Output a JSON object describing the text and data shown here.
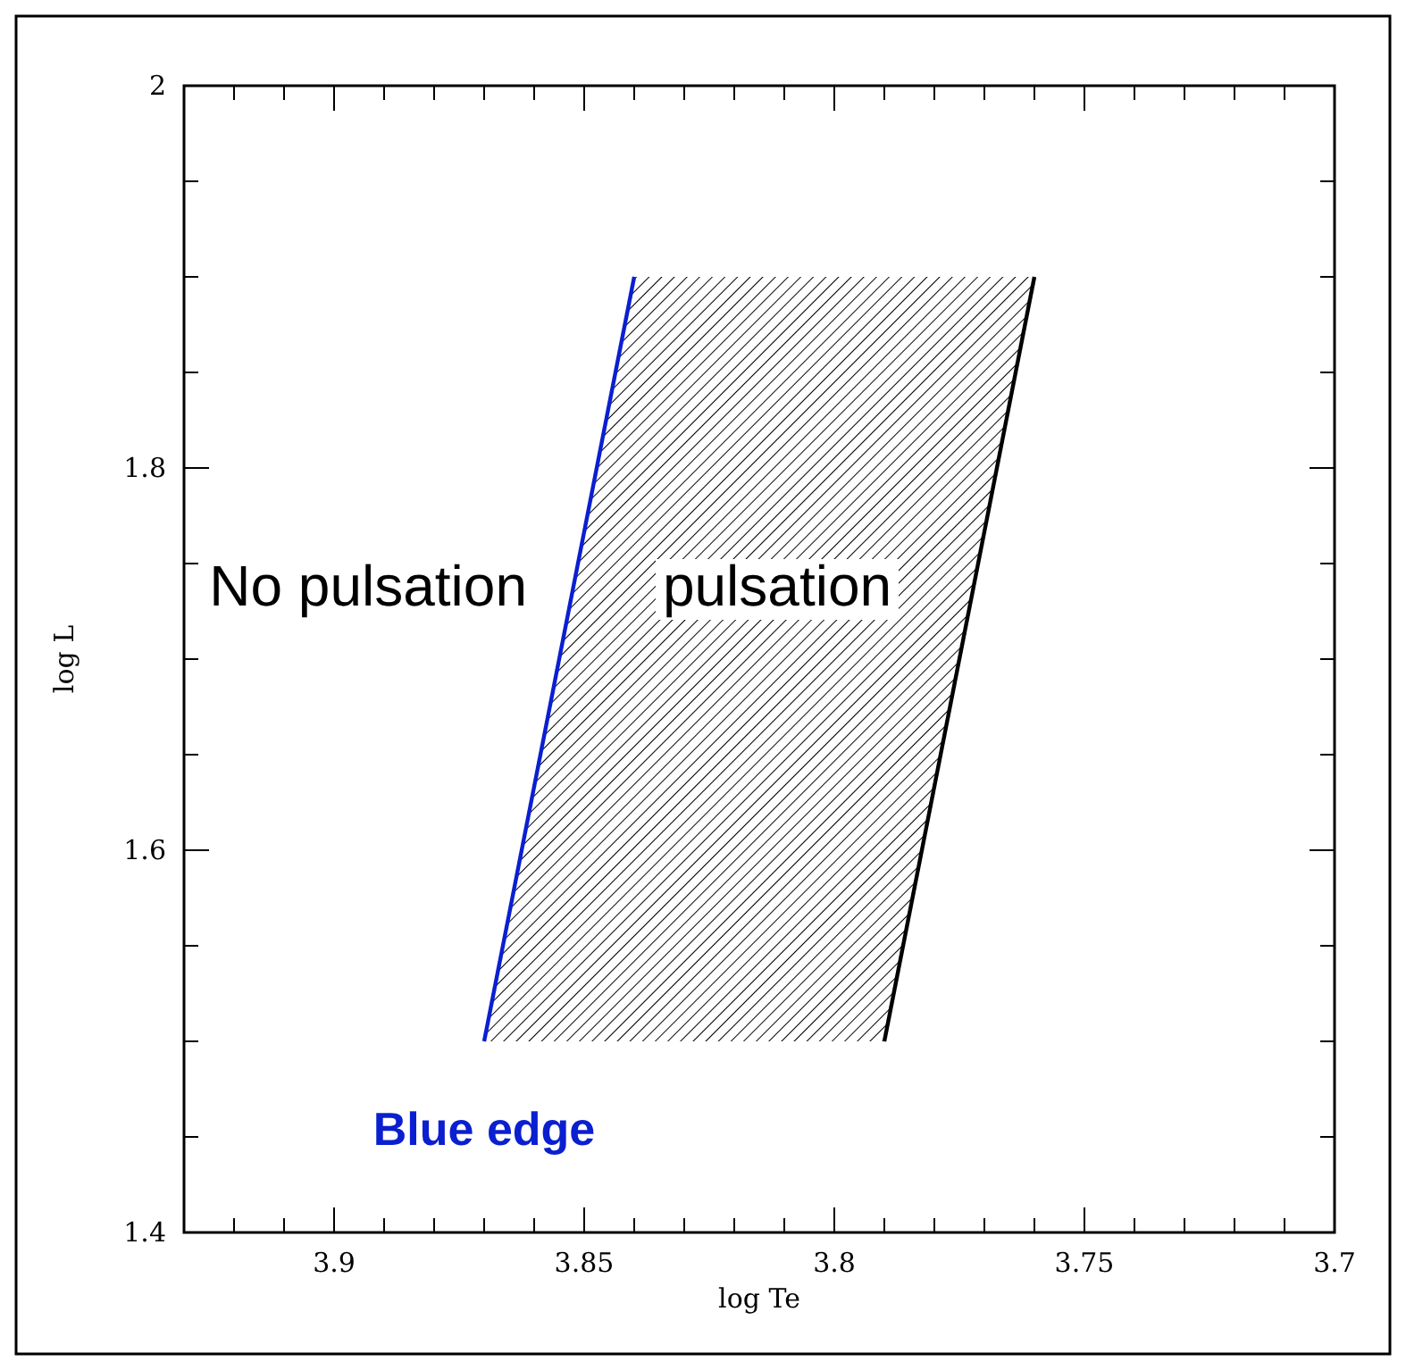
{
  "chart_data": {
    "type": "line",
    "xlabel": "log Te",
    "ylabel": "log L",
    "xlim": [
      3.93,
      3.7
    ],
    "xticks": [
      {
        "value": 3.92,
        "label": null
      },
      {
        "value": 3.91,
        "label": null
      },
      3.9,
      {
        "value": 3.89,
        "label": null
      },
      {
        "value": 3.88,
        "label": null
      },
      {
        "value": 3.87,
        "label": null
      },
      {
        "value": 3.86,
        "label": null
      },
      3.85,
      {
        "value": 3.84,
        "label": null
      },
      {
        "value": 3.83,
        "label": null
      },
      {
        "value": 3.82,
        "label": null
      },
      {
        "value": 3.81,
        "label": null
      },
      3.8,
      {
        "value": 3.79,
        "label": null
      },
      {
        "value": 3.78,
        "label": null
      },
      {
        "value": 3.77,
        "label": null
      },
      {
        "value": 3.76,
        "label": null
      },
      3.75,
      {
        "value": 3.74,
        "label": null
      },
      {
        "value": 3.73,
        "label": null
      },
      {
        "value": 3.72,
        "label": null
      },
      {
        "value": 3.71,
        "label": null
      },
      3.7
    ],
    "ylim": [
      1.4,
      2
    ],
    "yticks": [
      1.4,
      {
        "value": 1.45,
        "label": null
      },
      {
        "value": 1.5,
        "label": null
      },
      {
        "value": 1.55,
        "label": null
      },
      1.6,
      {
        "value": 1.65,
        "label": null
      },
      {
        "value": 1.7,
        "label": null
      },
      {
        "value": 1.75,
        "label": null
      },
      1.8,
      {
        "value": 1.85,
        "label": null
      },
      {
        "value": 1.9,
        "label": null
      },
      {
        "value": 1.95,
        "label": null
      },
      2
    ],
    "series": [
      {
        "name": "Blue edge",
        "color": "#0a1fd0",
        "x": [
          3.87,
          3.84
        ],
        "values": [
          1.5,
          1.9
        ]
      },
      {
        "color": "#000000",
        "x": [
          3.79,
          3.76
        ],
        "values": [
          1.5,
          1.9
        ]
      }
    ],
    "annotations": [
      "No pulsation",
      "pulsation"
    ],
    "marker": "none",
    "line_style": "solid"
  }
}
